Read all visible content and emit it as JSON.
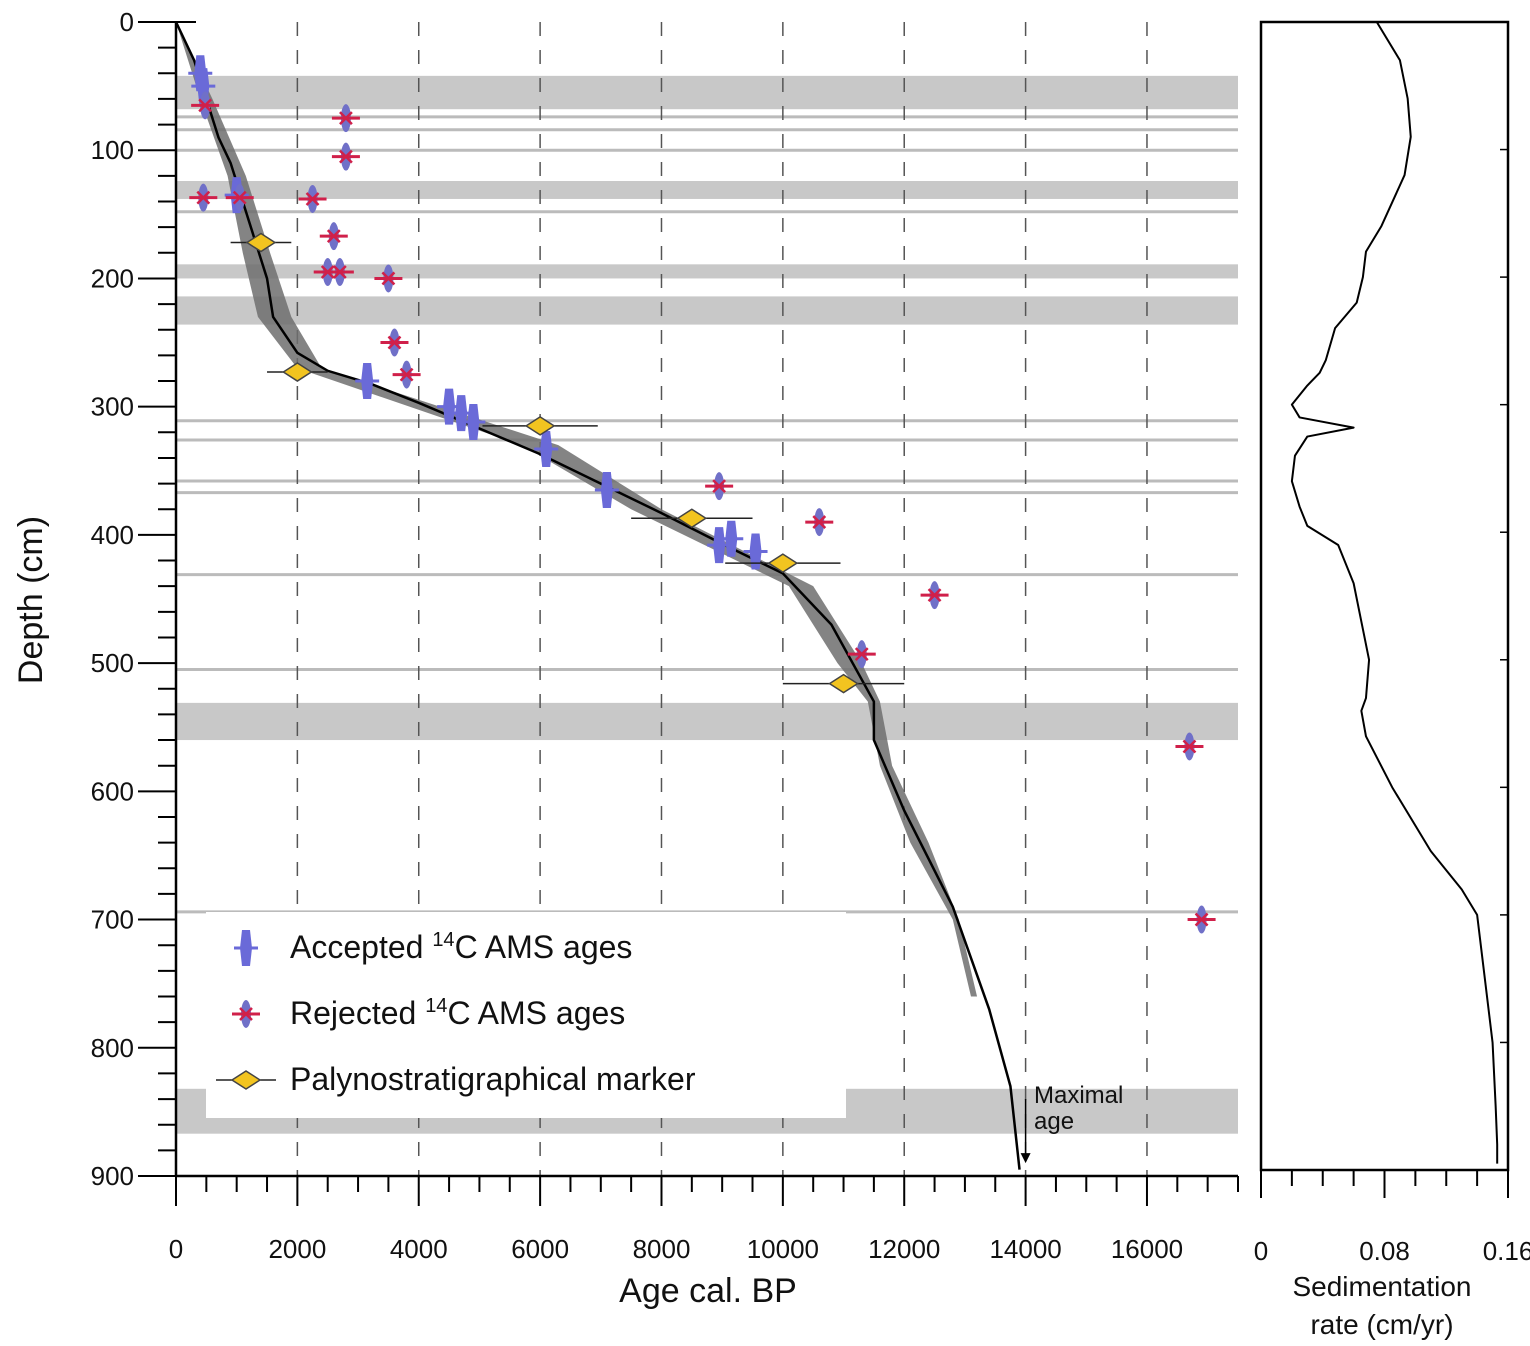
{
  "chart_data": [
    {
      "type": "scatter",
      "title": "",
      "xlabel": "Age cal. BP",
      "ylabel": "Depth (cm)",
      "xlim": [
        0,
        17500
      ],
      "ylim": [
        0,
        900
      ],
      "y_inverted": true,
      "x_ticks": [
        0,
        2000,
        4000,
        6000,
        8000,
        10000,
        12000,
        14000,
        16000
      ],
      "x_tick_labels": [
        "0",
        "2000",
        "4000",
        "6000",
        "8000",
        "10000",
        "12000",
        "14000",
        "16000"
      ],
      "y_ticks": [
        0,
        100,
        200,
        300,
        400,
        500,
        600,
        700,
        800,
        900
      ],
      "y_tick_labels": [
        "0",
        "100",
        "200",
        "300",
        "400",
        "500",
        "600",
        "700",
        "800",
        "900"
      ],
      "grid": "vertical dashed",
      "legend_position": "bottom-left",
      "legend": [
        {
          "name": "Accepted",
          "sup": "14",
          "rest": "C AMS ages",
          "marker": "accepted"
        },
        {
          "name": "Rejected",
          "sup": "14",
          "rest": "C AMS ages",
          "marker": "rejected"
        },
        {
          "name": "Palynostratigraphical marker",
          "sup": "",
          "rest": "",
          "marker": "marker"
        }
      ],
      "age_depth_model": {
        "x": [
          0,
          300,
          500,
          700,
          900,
          1100,
          1300,
          1500,
          1600,
          2000,
          2500,
          3200,
          4000,
          5000,
          6000,
          7000,
          8000,
          9000,
          10000,
          10800,
          11500,
          11500,
          12000,
          12800,
          13400,
          13750,
          13900
        ],
        "y": [
          0,
          30,
          60,
          90,
          110,
          140,
          170,
          200,
          230,
          258,
          272,
          282,
          297,
          317,
          337,
          360,
          383,
          407,
          430,
          470,
          530,
          560,
          615,
          690,
          770,
          830,
          895
        ]
      },
      "uncertainty_envelope": {
        "depth": [
          0,
          60,
          120,
          180,
          230,
          270,
          330,
          380,
          440,
          500,
          530,
          580,
          640,
          700,
          760
        ],
        "x_min": [
          0,
          400,
          850,
          1100,
          1350,
          2000,
          5700,
          7500,
          10100,
          10900,
          11400,
          11600,
          12100,
          12800,
          13100
        ],
        "x_max": [
          0,
          600,
          1150,
          1550,
          1900,
          2400,
          6300,
          8000,
          10500,
          11300,
          11600,
          11800,
          12400,
          12900,
          13200
        ]
      },
      "series": [
        {
          "name": "Accepted",
          "points": [
            {
              "x": 400,
              "y": 40
            },
            {
              "x": 450,
              "y": 50
            },
            {
              "x": 1000,
              "y": 135
            },
            {
              "x": 3150,
              "y": 280
            },
            {
              "x": 4500,
              "y": 300
            },
            {
              "x": 4700,
              "y": 305
            },
            {
              "x": 4900,
              "y": 312
            },
            {
              "x": 6100,
              "y": 333
            },
            {
              "x": 7100,
              "y": 365
            },
            {
              "x": 8950,
              "y": 408
            },
            {
              "x": 9150,
              "y": 403
            },
            {
              "x": 9550,
              "y": 413
            }
          ]
        },
        {
          "name": "Rejected",
          "points": [
            {
              "x": 480,
              "y": 65
            },
            {
              "x": 2800,
              "y": 75
            },
            {
              "x": 2800,
              "y": 105
            },
            {
              "x": 450,
              "y": 137
            },
            {
              "x": 1050,
              "y": 137
            },
            {
              "x": 2250,
              "y": 138
            },
            {
              "x": 2600,
              "y": 167
            },
            {
              "x": 2500,
              "y": 195
            },
            {
              "x": 2700,
              "y": 195
            },
            {
              "x": 3500,
              "y": 200
            },
            {
              "x": 3600,
              "y": 250
            },
            {
              "x": 3800,
              "y": 275
            },
            {
              "x": 8950,
              "y": 362
            },
            {
              "x": 10600,
              "y": 390
            },
            {
              "x": 12500,
              "y": 447
            },
            {
              "x": 11300,
              "y": 493
            },
            {
              "x": 16700,
              "y": 565
            },
            {
              "x": 16900,
              "y": 700
            }
          ]
        },
        {
          "name": "Palynostratigraphical marker",
          "points": [
            {
              "x": 1400,
              "y": 172,
              "xerr": 500
            },
            {
              "x": 2000,
              "y": 273,
              "xerr": 500
            },
            {
              "x": 6000,
              "y": 315,
              "xerr": 950
            },
            {
              "x": 8500,
              "y": 387,
              "xerr": 1000
            },
            {
              "x": 10000,
              "y": 422,
              "xerr": 950
            },
            {
              "x": 11000,
              "y": 516,
              "xerr": 1000
            }
          ]
        }
      ],
      "hiatus_bands_depth": [
        {
          "y0": 42,
          "y1": 68
        },
        {
          "y0": 124,
          "y1": 138
        },
        {
          "y0": 189,
          "y1": 200
        },
        {
          "y0": 214,
          "y1": 236
        },
        {
          "y0": 531,
          "y1": 560
        },
        {
          "y0": 832,
          "y1": 867
        }
      ],
      "thin_lines_depth": [
        74,
        84,
        100,
        148,
        311,
        326,
        358,
        367,
        431,
        505,
        694
      ],
      "annotation": {
        "line1": "Maximal",
        "line2": "age",
        "x": 14000,
        "y": 890
      }
    },
    {
      "type": "line",
      "title": "",
      "xlabel_line1": "Sedimentation",
      "xlabel_line2": "rate (cm/yr)",
      "xlim": [
        0,
        0.16
      ],
      "ylim": [
        0,
        900
      ],
      "y_inverted": true,
      "x_ticks": [
        0,
        0.08,
        0.16
      ],
      "x_tick_labels": [
        "0",
        "0.08",
        "0.16"
      ],
      "x": [
        0.075,
        0.09,
        0.095,
        0.097,
        0.093,
        0.078,
        0.068,
        0.066,
        0.062,
        0.048,
        0.042,
        0.038,
        0.03,
        0.02,
        0.025,
        0.06,
        0.03,
        0.022,
        0.02,
        0.025,
        0.03,
        0.05,
        0.06,
        0.065,
        0.07,
        0.068,
        0.065,
        0.068,
        0.085,
        0.11,
        0.13,
        0.14,
        0.145,
        0.15,
        0.152,
        0.153,
        0.153
      ],
      "y": [
        0,
        30,
        60,
        90,
        120,
        160,
        180,
        200,
        220,
        240,
        265,
        275,
        285,
        300,
        310,
        318,
        325,
        340,
        360,
        380,
        395,
        410,
        440,
        470,
        500,
        530,
        540,
        560,
        600,
        650,
        680,
        700,
        750,
        800,
        850,
        880,
        895
      ]
    }
  ]
}
